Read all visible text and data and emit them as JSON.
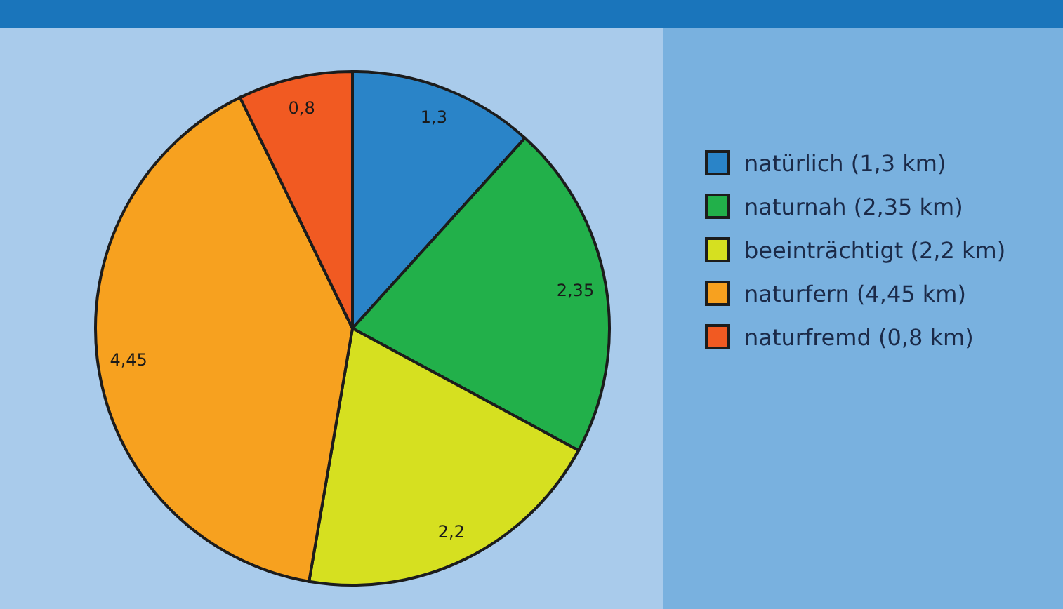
{
  "chart_data": {
    "type": "pie",
    "categories": [
      "natürlich (1,3 km)",
      "naturnah (2,35 km)",
      "beeinträchtigt (2,2 km)",
      "naturfern (4,45 km)",
      "naturfremd (0,8 km)"
    ],
    "values": [
      1.3,
      2.35,
      2.2,
      4.45,
      0.8
    ],
    "colors": [
      "#2a84c8",
      "#22b04a",
      "#d6e020",
      "#f7a11f",
      "#f15a22"
    ],
    "value_labels": [
      "1,3",
      "2,35",
      "2,2",
      "4,45",
      "0,8"
    ],
    "legend": "right"
  }
}
